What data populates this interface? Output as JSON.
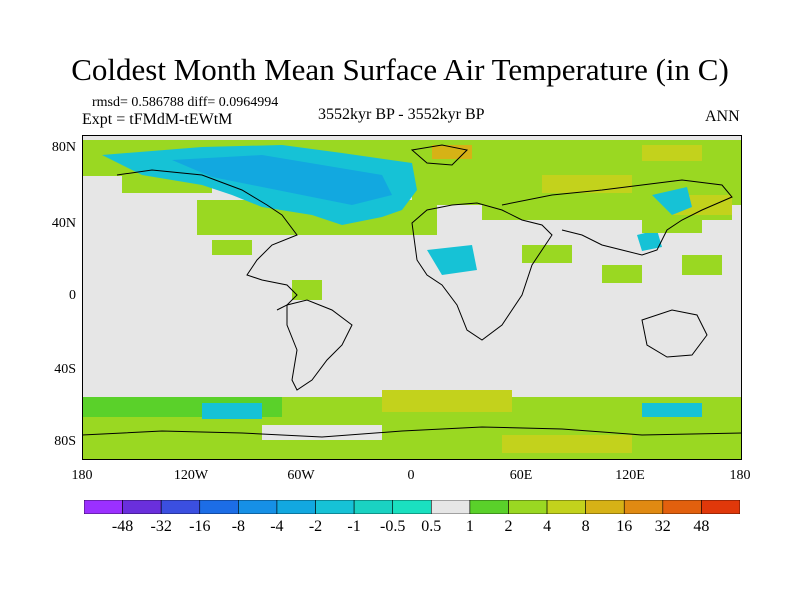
{
  "title": "Coldest Month Mean Surface Air Temperature (in C)",
  "stats_line": "rmsd= 0.586788 diff= 0.0964994",
  "experiment_line": "Expt = tFMdM-tEWtM",
  "period": "3552kyr BP - 3552kyr BP",
  "season": "ANN",
  "y_ticks": [
    "80N",
    "40N",
    "0",
    "40S",
    "80S"
  ],
  "x_ticks": [
    "180",
    "120W",
    "60W",
    "0",
    "60E",
    "120E",
    "180"
  ],
  "colorbar": {
    "labels": [
      "-48",
      "-32",
      "-16",
      "-8",
      "-4",
      "-2",
      "-1",
      "-0.5",
      "0.5",
      "1",
      "2",
      "4",
      "8",
      "16",
      "32",
      "48"
    ],
    "colors": [
      "#9b30ff",
      "#6a2fdc",
      "#3b4fe0",
      "#1c6de6",
      "#1690e6",
      "#12a8e0",
      "#16c2d6",
      "#1ad2c2",
      "#e6e6e6",
      "#5ad12a",
      "#9ad822",
      "#c3d21c",
      "#d6b216",
      "#e08a12",
      "#e2600e",
      "#e0380a"
    ]
  },
  "colors": {
    "neutral": "#e6e6e6",
    "cool_light": "#16c2d6",
    "cool_mid": "#12a8e0",
    "warm_light": "#9ad822",
    "warm_mid": "#c3d21c",
    "warm_orange": "#d6b216"
  }
}
